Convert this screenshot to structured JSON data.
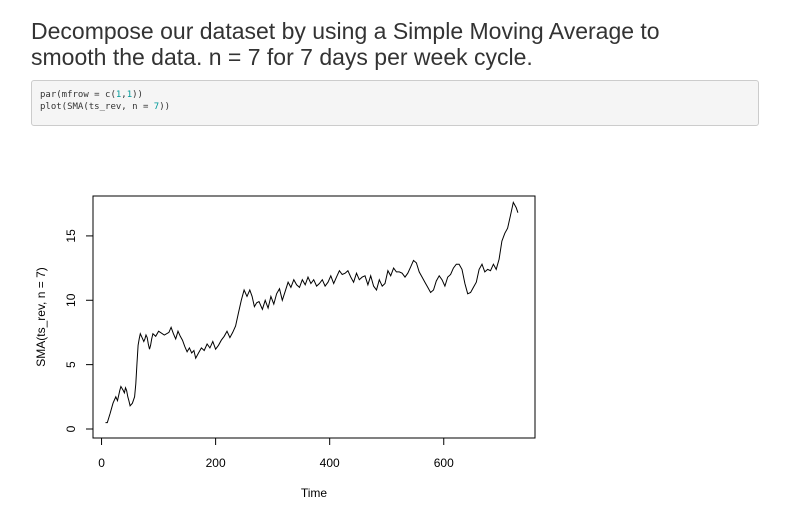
{
  "heading": {
    "line1": "Decompose our dataset by using a Simple Moving Average to",
    "line2": "smooth the data. n = 7 for 7 days per week cycle."
  },
  "code": {
    "line1": {
      "pre": "par(mfrow = c(",
      "n1": "1",
      "sep": ",",
      "n2": "1",
      "post": "))"
    },
    "line2": {
      "pre": "plot(SMA(ts_rev, n = ",
      "n": "7",
      "post": "))"
    }
  },
  "colors": {
    "code_number": "#009999",
    "code_background": "#f5f5f5",
    "plot_line": "#000000"
  },
  "chart_data": {
    "type": "line",
    "title": "",
    "xlabel": "Time",
    "ylabel": "SMA(ts_rev, n = 7)",
    "xlim": [
      -15,
      760
    ],
    "ylim": [
      -0.7,
      18.1
    ],
    "x_ticks": [
      0,
      200,
      400,
      600
    ],
    "y_ticks": [
      0,
      5,
      10,
      15
    ],
    "grid": false,
    "legend": "none",
    "series": [
      {
        "x": [
          7,
          10,
          15,
          20,
          25,
          28,
          32,
          34,
          38,
          40,
          42,
          44,
          46,
          48,
          50,
          54,
          58,
          60,
          62,
          64,
          66,
          68,
          70,
          74,
          76,
          78,
          80,
          82,
          84,
          86,
          88,
          90,
          95,
          100,
          110,
          118,
          122,
          126,
          130,
          134,
          138,
          142,
          146,
          150,
          154,
          158,
          162,
          165,
          170,
          175,
          180,
          185,
          190,
          195,
          200,
          205,
          210,
          215,
          220,
          225,
          230,
          235,
          240,
          245,
          250,
          255,
          260,
          264,
          268,
          272,
          276,
          282,
          287,
          292,
          297,
          302,
          307,
          312,
          317,
          322,
          327,
          332,
          337,
          342,
          347,
          352,
          357,
          362,
          367,
          372,
          377,
          382,
          387,
          392,
          397,
          402,
          407,
          412,
          417,
          422,
          427,
          432,
          437,
          442,
          447,
          452,
          457,
          462,
          467,
          472,
          477,
          482,
          487,
          492,
          497,
          502,
          507,
          512,
          517,
          522,
          527,
          532,
          537,
          542,
          547,
          552,
          557,
          562,
          567,
          572,
          577,
          582,
          587,
          592,
          597,
          602,
          607,
          612,
          617,
          622,
          627,
          632,
          637,
          642,
          647,
          652,
          657,
          662,
          667,
          672,
          677,
          682,
          687,
          692,
          697,
          702,
          707,
          712,
          717,
          722,
          727,
          730
        ],
        "y": [
          0.5,
          0.5,
          1.2,
          2.0,
          2.5,
          2.2,
          3.0,
          3.3,
          3.0,
          2.8,
          3.2,
          3.0,
          2.5,
          2.2,
          1.8,
          2.0,
          2.5,
          3.5,
          5.0,
          6.5,
          7.0,
          7.4,
          7.2,
          6.8,
          7.0,
          7.3,
          7.1,
          6.6,
          6.2,
          6.5,
          7.0,
          7.4,
          7.2,
          7.6,
          7.3,
          7.5,
          7.9,
          7.4,
          7.0,
          7.6,
          7.2,
          6.9,
          6.4,
          6.0,
          6.3,
          5.9,
          6.1,
          5.5,
          5.9,
          6.3,
          6.1,
          6.6,
          6.3,
          6.8,
          6.2,
          6.5,
          6.9,
          7.2,
          7.6,
          7.1,
          7.5,
          8.0,
          9.0,
          10.0,
          10.8,
          10.3,
          10.8,
          10.3,
          9.5,
          9.8,
          9.9,
          9.3,
          10.0,
          9.4,
          10.3,
          9.7,
          10.5,
          10.9,
          10.0,
          10.7,
          11.4,
          11.0,
          11.6,
          11.2,
          11.0,
          11.6,
          11.2,
          11.8,
          11.3,
          11.6,
          11.1,
          11.3,
          11.6,
          11.1,
          11.4,
          11.9,
          11.3,
          11.8,
          12.3,
          12.0,
          12.1,
          12.3,
          11.8,
          11.4,
          12.1,
          11.6,
          11.8,
          11.9,
          11.2,
          11.9,
          11.1,
          10.8,
          11.6,
          11.1,
          11.3,
          12.3,
          11.9,
          12.5,
          12.2,
          12.2,
          12.1,
          11.8,
          12.1,
          12.6,
          13.1,
          12.9,
          12.2,
          11.8,
          11.4,
          11.0,
          10.6,
          10.8,
          11.5,
          11.9,
          11.6,
          11.1,
          11.8,
          12.0,
          12.5,
          12.8,
          12.8,
          12.4,
          11.3,
          10.5,
          10.6,
          11.0,
          11.4,
          12.4,
          12.8,
          12.2,
          12.4,
          12.3,
          12.8,
          12.4,
          13.2,
          14.6,
          15.2,
          15.6,
          16.6,
          17.6,
          17.2,
          16.8
        ]
      }
    ]
  }
}
